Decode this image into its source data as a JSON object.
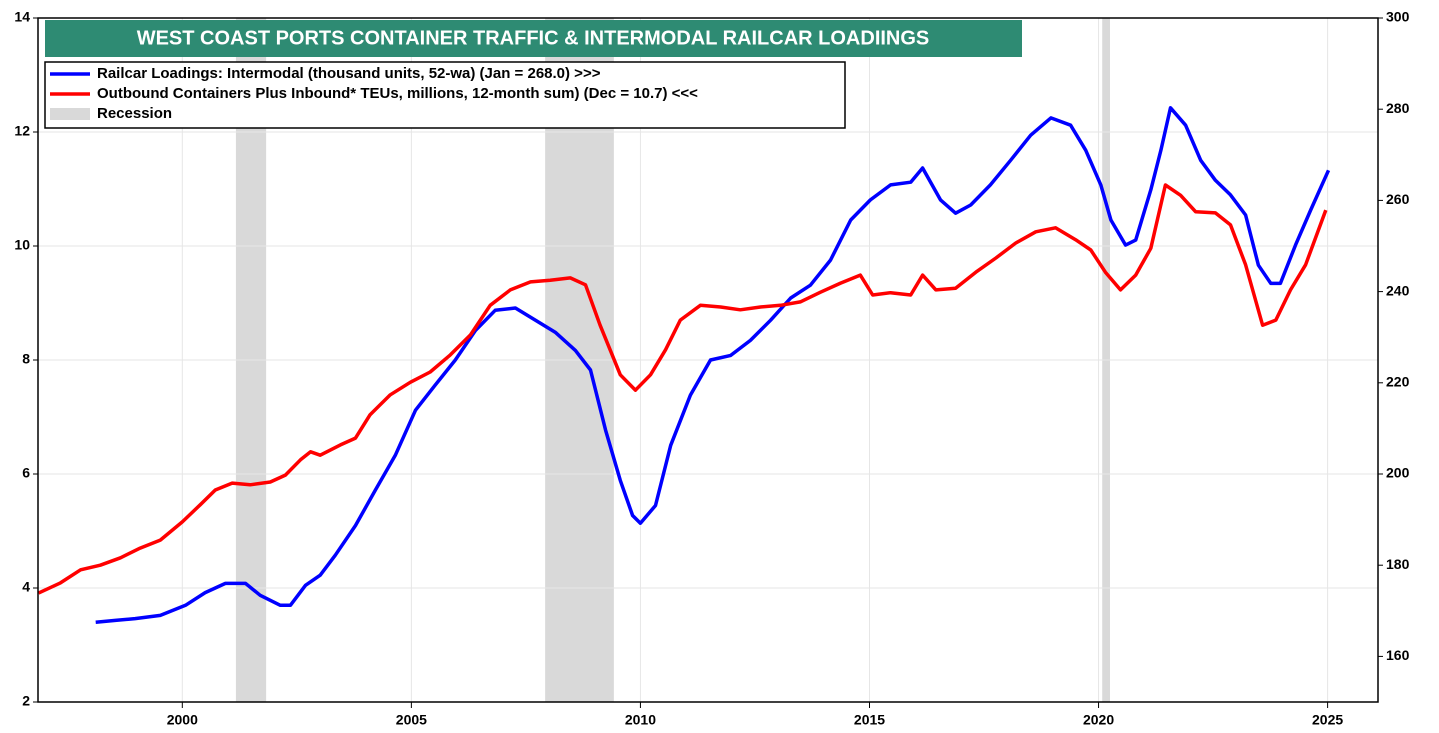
{
  "chart_data": {
    "type": "line",
    "title": "WEST COAST PORTS CONTAINER TRAFFIC & INTERMODAL RAILCAR LOADIINGS",
    "xlim": [
      1996.85,
      2026.1
    ],
    "xticks": [
      2000,
      2005,
      2010,
      2015,
      2020,
      2025
    ],
    "ylim": [
      2,
      14
    ],
    "yticks": [
      2,
      4,
      6,
      8,
      10,
      12,
      14
    ],
    "y2lim": [
      150,
      300
    ],
    "y2ticks": [
      160,
      180,
      200,
      220,
      240,
      260,
      280,
      300
    ],
    "grid": true,
    "recession": {
      "name": "Recession",
      "color": "#d9d9d9",
      "periods": [
        [
          2001.17,
          2001.83
        ],
        [
          2007.92,
          2009.42
        ],
        [
          2020.08,
          2020.25
        ]
      ]
    },
    "series": [
      {
        "name": "Railcar Loadings: Intermodal (thousand units, 52-wa) (Jan = 268.0) >>>",
        "color": "#0000ff",
        "axis": "y2",
        "x": [
          1998.11,
          1998.54,
          1998.97,
          1999.52,
          2000.07,
          2000.5,
          2000.94,
          2001.38,
          2001.7,
          2002.14,
          2002.36,
          2002.69,
          2003.01,
          2003.34,
          2003.78,
          2004.21,
          2004.65,
          2005.09,
          2005.52,
          2005.96,
          2006.4,
          2006.83,
          2007.27,
          2007.71,
          2008.14,
          2008.58,
          2008.91,
          2009.24,
          2009.56,
          2009.83,
          2010.0,
          2010.33,
          2010.66,
          2011.09,
          2011.53,
          2011.97,
          2012.4,
          2012.84,
          2013.28,
          2013.71,
          2014.15,
          2014.59,
          2015.02,
          2015.46,
          2015.9,
          2016.16,
          2016.55,
          2016.88,
          2017.21,
          2017.64,
          2018.08,
          2018.52,
          2018.96,
          2019.39,
          2019.72,
          2020.05,
          2020.27,
          2020.59,
          2020.81,
          2021.14,
          2021.36,
          2021.57,
          2021.9,
          2022.23,
          2022.55,
          2022.88,
          2023.21,
          2023.49,
          2023.76,
          2023.97,
          2024.3,
          2024.63,
          2025.02
        ],
        "values": [
          167.5,
          167.9,
          168.3,
          169.0,
          171.2,
          174.0,
          176.0,
          176.0,
          173.4,
          171.2,
          171.2,
          175.6,
          177.8,
          182.2,
          188.7,
          196.4,
          204.1,
          214.0,
          219.5,
          225.0,
          231.5,
          235.9,
          236.4,
          233.7,
          231.1,
          227.1,
          222.8,
          209.6,
          198.6,
          190.9,
          189.2,
          193.1,
          206.3,
          217.3,
          225.0,
          226.0,
          229.3,
          233.7,
          238.6,
          241.4,
          246.9,
          255.7,
          260.1,
          263.4,
          264.0,
          267.1,
          260.1,
          257.2,
          259.0,
          263.4,
          268.8,
          274.3,
          278.1,
          276.5,
          271.0,
          263.4,
          255.7,
          250.2,
          251.3,
          262.3,
          271.0,
          280.3,
          276.5,
          268.8,
          264.4,
          261.2,
          256.8,
          245.8,
          241.8,
          241.8,
          250.2,
          257.9,
          266.6
        ]
      },
      {
        "name": "Outbound Containers Plus Inbound* TEUs, millions, 12-month sum) (Dec = 10.7) <<<",
        "color": "#ff0000",
        "axis": "y",
        "x": [
          1996.86,
          1997.34,
          1997.78,
          1998.21,
          1998.65,
          1999.08,
          1999.52,
          2000.0,
          2000.39,
          2000.72,
          2001.09,
          2001.48,
          2001.92,
          2002.25,
          2002.58,
          2002.8,
          2003.01,
          2003.45,
          2003.78,
          2004.1,
          2004.54,
          2004.98,
          2005.41,
          2005.85,
          2006.29,
          2006.72,
          2007.16,
          2007.6,
          2008.03,
          2008.47,
          2008.8,
          2009.12,
          2009.56,
          2009.89,
          2010.22,
          2010.55,
          2010.87,
          2011.31,
          2011.75,
          2012.18,
          2012.62,
          2013.06,
          2013.49,
          2013.93,
          2014.37,
          2014.8,
          2015.07,
          2015.46,
          2015.9,
          2016.16,
          2016.45,
          2016.88,
          2017.32,
          2017.76,
          2018.19,
          2018.63,
          2019.06,
          2019.5,
          2019.83,
          2020.15,
          2020.48,
          2020.81,
          2021.14,
          2021.46,
          2021.79,
          2022.12,
          2022.55,
          2022.88,
          2023.21,
          2023.58,
          2023.87,
          2024.19,
          2024.52,
          2024.96
        ],
        "values": [
          3.91,
          4.09,
          4.32,
          4.4,
          4.53,
          4.7,
          4.84,
          5.16,
          5.46,
          5.72,
          5.84,
          5.81,
          5.86,
          5.98,
          6.25,
          6.39,
          6.33,
          6.51,
          6.63,
          7.04,
          7.39,
          7.61,
          7.79,
          8.09,
          8.44,
          8.96,
          9.23,
          9.37,
          9.4,
          9.44,
          9.32,
          8.61,
          7.74,
          7.47,
          7.74,
          8.18,
          8.7,
          8.96,
          8.93,
          8.88,
          8.93,
          8.96,
          9.02,
          9.19,
          9.35,
          9.49,
          9.14,
          9.18,
          9.14,
          9.49,
          9.23,
          9.26,
          9.54,
          9.79,
          10.05,
          10.25,
          10.32,
          10.11,
          9.93,
          9.54,
          9.23,
          9.49,
          9.96,
          11.07,
          10.89,
          10.6,
          10.58,
          10.37,
          9.67,
          8.61,
          8.7,
          9.23,
          9.67,
          10.63
        ]
      }
    ]
  }
}
